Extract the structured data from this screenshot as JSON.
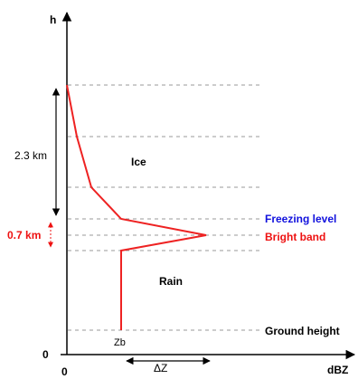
{
  "axes": {
    "y_label": "h",
    "x_label": "dBZ",
    "origin_y": "0",
    "origin_x": "0"
  },
  "dimensions": {
    "upper_span": "2.3 km",
    "bright_band_span": "0.7 km",
    "delta_z": "ΔZ"
  },
  "regions": {
    "upper": "Ice",
    "lower": "Rain"
  },
  "levels": {
    "freezing": "Freezing level",
    "bright_band": "Bright band",
    "ground": "Ground height"
  },
  "points": {
    "zb": "Zb"
  },
  "colors": {
    "profile": "#ee2222",
    "freezing_label": "#1111dd",
    "bright_band_label": "#ee1111",
    "dashed": "#999999",
    "axis": "#000000"
  }
}
